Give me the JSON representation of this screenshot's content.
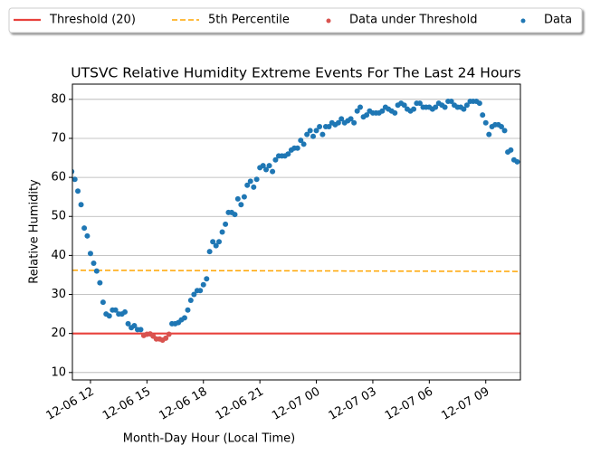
{
  "chart_data": {
    "type": "scatter",
    "title": "UTSVC Relative Humidity Extreme Events For The Last 24 Hours",
    "x_label": "Month-Day Hour (Local Time)",
    "y_label": "Relative Humidity",
    "xlim": [
      11.04,
      34.84
    ],
    "ylim": [
      8.1,
      83.9
    ],
    "xticks": [
      {
        "value": 12,
        "label": "12-06 12"
      },
      {
        "value": 15,
        "label": "12-06 15"
      },
      {
        "value": 18,
        "label": "12-06 18"
      },
      {
        "value": 21,
        "label": "12-06 21"
      },
      {
        "value": 24,
        "label": "12-07 00"
      },
      {
        "value": 27,
        "label": "12-07 03"
      },
      {
        "value": 30,
        "label": "12-07 06"
      },
      {
        "value": 33,
        "label": "12-07 09"
      }
    ],
    "yticks": [
      10,
      20,
      30,
      40,
      50,
      60,
      70,
      80
    ],
    "grid": "y",
    "series": [
      {
        "name": "Threshold (20)",
        "type": "line",
        "style": "solid",
        "color": "#e8413c",
        "x": [
          11.04,
          34.84
        ],
        "values": [
          20,
          20
        ]
      },
      {
        "name": "5th Percentile",
        "type": "line",
        "style": "dashed",
        "color": "#ffa500",
        "x": [
          11.04,
          34.84
        ],
        "values": [
          36.2,
          35.9
        ]
      },
      {
        "name": "Data under Threshold",
        "type": "scatter",
        "color": "#d9534f",
        "x": [
          14.83,
          15,
          15.17,
          15.33,
          15.5,
          15.67,
          15.83,
          16,
          16.17
        ],
        "values": [
          19.5,
          19.8,
          19.9,
          19.3,
          18.6,
          18.6,
          18.3,
          18.8,
          19.8
        ]
      },
      {
        "name": "Data",
        "type": "scatter",
        "color": "#1f77b4",
        "x": [
          11,
          11.17,
          11.33,
          11.5,
          11.67,
          11.83,
          12,
          12.17,
          12.33,
          12.5,
          12.67,
          12.83,
          13,
          13.17,
          13.33,
          13.5,
          13.67,
          13.83,
          14,
          14.17,
          14.33,
          14.5,
          14.67,
          16.33,
          16.5,
          16.67,
          16.83,
          17,
          17.17,
          17.33,
          17.5,
          17.67,
          17.83,
          18,
          18.17,
          18.33,
          18.5,
          18.67,
          18.83,
          19,
          19.17,
          19.33,
          19.5,
          19.67,
          19.83,
          20,
          20.17,
          20.33,
          20.5,
          20.67,
          20.83,
          21,
          21.17,
          21.33,
          21.5,
          21.67,
          21.83,
          22,
          22.17,
          22.33,
          22.5,
          22.67,
          22.83,
          23,
          23.17,
          23.33,
          23.5,
          23.67,
          23.83,
          24,
          24.17,
          24.33,
          24.5,
          24.67,
          24.83,
          25,
          25.17,
          25.33,
          25.5,
          25.67,
          25.83,
          26,
          26.17,
          26.33,
          26.5,
          26.67,
          26.83,
          27,
          27.17,
          27.33,
          27.5,
          27.67,
          27.83,
          28,
          28.17,
          28.33,
          28.5,
          28.67,
          28.83,
          29,
          29.17,
          29.33,
          29.5,
          29.67,
          29.83,
          30,
          30.17,
          30.33,
          30.5,
          30.67,
          30.83,
          31,
          31.17,
          31.33,
          31.5,
          31.67,
          31.83,
          32,
          32.17,
          32.33,
          32.5,
          32.67,
          32.83,
          33,
          33.17,
          33.33,
          33.5,
          33.67,
          33.83,
          34,
          34.17,
          34.33,
          34.5,
          34.67
        ],
        "values": [
          61.5,
          59.5,
          56.5,
          53,
          47,
          45,
          40.5,
          38,
          36,
          33,
          28,
          25,
          24.5,
          26,
          26,
          25,
          25,
          25.5,
          22.5,
          21.5,
          22,
          21,
          21,
          22.5,
          22.5,
          22.8,
          23.5,
          24,
          26,
          28.5,
          30,
          31,
          31,
          32.5,
          34,
          41,
          43.5,
          42.5,
          43.5,
          46,
          48,
          51,
          51,
          50.5,
          54.5,
          53,
          55,
          58,
          59,
          57.5,
          59.5,
          62.5,
          63,
          62,
          63,
          61.5,
          64.5,
          65.5,
          65.5,
          65.5,
          66,
          67,
          67.5,
          67.5,
          69.5,
          68.5,
          71,
          72,
          70.5,
          72,
          73,
          71,
          73,
          73,
          74,
          73.5,
          74,
          75,
          74,
          74.5,
          75,
          74,
          77,
          78,
          75.5,
          76,
          77,
          76.5,
          76.5,
          76.5,
          77,
          78,
          77.5,
          77,
          76.5,
          78.5,
          79,
          78.5,
          77.5,
          77,
          77.5,
          79,
          79,
          78,
          78,
          78,
          77.5,
          78,
          79,
          78.5,
          78,
          79.5,
          79.5,
          78.5,
          78,
          78,
          77.5,
          78.5,
          79.5,
          79.5,
          79.5,
          79,
          76,
          74,
          71,
          73,
          73.5,
          73.5,
          73,
          72,
          66.5,
          67,
          64.5,
          64
        ]
      }
    ]
  }
}
